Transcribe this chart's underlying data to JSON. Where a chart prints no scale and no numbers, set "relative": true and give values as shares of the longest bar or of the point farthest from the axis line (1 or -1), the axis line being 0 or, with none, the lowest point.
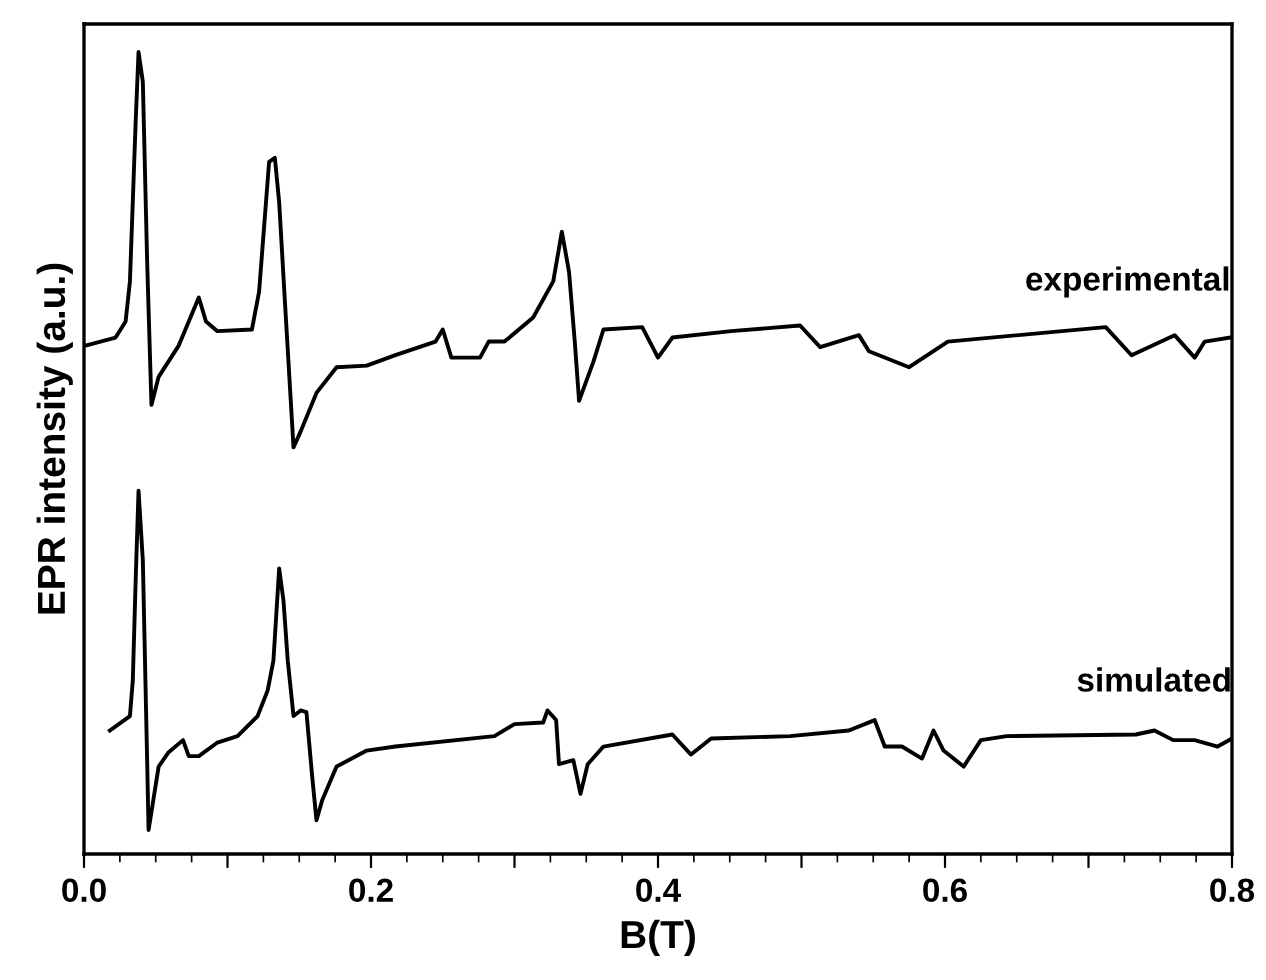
{
  "chart_data": {
    "type": "line",
    "xlabel": "B(T)",
    "ylabel": "EPR intensity (a.u.)",
    "relative": true,
    "xlim": [
      0,
      0.8
    ],
    "xticks": [
      {
        "value": 0,
        "label": "0.0"
      },
      {
        "value": 0.1,
        "label": null
      },
      0.2,
      {
        "value": 0.3,
        "label": null
      },
      0.4,
      {
        "value": 0.5,
        "label": null
      },
      0.6,
      {
        "value": 0.7,
        "label": null
      },
      0.8
    ],
    "tick_labels": "x",
    "grid": false,
    "legend": false,
    "marker": "none",
    "line_style": "solid",
    "series": [
      {
        "name": "experimental",
        "color": "#000000",
        "x": [
          0.001,
          0.022,
          0.029,
          0.032,
          0.036,
          0.038,
          0.041,
          0.044,
          0.047,
          0.052,
          0.066,
          0.08,
          0.085,
          0.093,
          0.117,
          0.122,
          0.129,
          0.133,
          0.136,
          0.14,
          0.146,
          0.151,
          0.162,
          0.176,
          0.197,
          0.217,
          0.245,
          0.25,
          0.256,
          0.276,
          0.282,
          0.293,
          0.313,
          0.327,
          0.333,
          0.338,
          0.342,
          0.345,
          0.355,
          0.362,
          0.389,
          0.4,
          0.41,
          0.451,
          0.499,
          0.513,
          0.54,
          0.547,
          0.575,
          0.602,
          0.712,
          0.73,
          0.76,
          0.774,
          0.781,
          0.799
        ],
        "values": [
          0.634,
          0.644,
          0.664,
          0.714,
          0.913,
          1,
          0.963,
          0.739,
          0.56,
          0.595,
          0.634,
          0.694,
          0.664,
          0.652,
          0.654,
          0.701,
          0.863,
          0.868,
          0.813,
          0.689,
          0.507,
          0.527,
          0.575,
          0.607,
          0.609,
          0.622,
          0.639,
          0.654,
          0.619,
          0.619,
          0.639,
          0.639,
          0.669,
          0.714,
          0.776,
          0.726,
          0.639,
          0.565,
          0.614,
          0.654,
          0.657,
          0.619,
          0.644,
          0.652,
          0.659,
          0.632,
          0.647,
          0.627,
          0.607,
          0.639,
          0.657,
          0.622,
          0.647,
          0.619,
          0.639,
          0.644
        ]
      },
      {
        "name": "simulated",
        "color": "#000000",
        "x": [
          0.018,
          0.032,
          0.034,
          0.036,
          0.038,
          0.041,
          0.044,
          0.045,
          0.052,
          0.059,
          0.069,
          0.073,
          0.08,
          0.093,
          0.107,
          0.121,
          0.128,
          0.132,
          0.136,
          0.139,
          0.142,
          0.146,
          0.151,
          0.155,
          0.159,
          0.162,
          0.166,
          0.176,
          0.197,
          0.217,
          0.286,
          0.3,
          0.32,
          0.323,
          0.329,
          0.331,
          0.341,
          0.346,
          0.351,
          0.362,
          0.41,
          0.423,
          0.437,
          0.492,
          0.533,
          0.551,
          0.558,
          0.57,
          0.584,
          0.592,
          0.599,
          0.613,
          0.625,
          0.643,
          0.733,
          0.746,
          0.759,
          0.774,
          0.79,
          0.8
        ],
        "values": [
          0.154,
          0.172,
          0.216,
          0.341,
          0.453,
          0.366,
          0.117,
          0.03,
          0.109,
          0.127,
          0.142,
          0.122,
          0.122,
          0.139,
          0.147,
          0.172,
          0.204,
          0.241,
          0.356,
          0.316,
          0.241,
          0.172,
          0.179,
          0.177,
          0.097,
          0.042,
          0.067,
          0.109,
          0.129,
          0.134,
          0.147,
          0.162,
          0.164,
          0.179,
          0.167,
          0.112,
          0.117,
          0.075,
          0.112,
          0.134,
          0.149,
          0.124,
          0.144,
          0.147,
          0.154,
          0.167,
          0.134,
          0.134,
          0.119,
          0.154,
          0.129,
          0.109,
          0.142,
          0.147,
          0.149,
          0.154,
          0.142,
          0.142,
          0.134,
          0.144
        ]
      }
    ]
  }
}
